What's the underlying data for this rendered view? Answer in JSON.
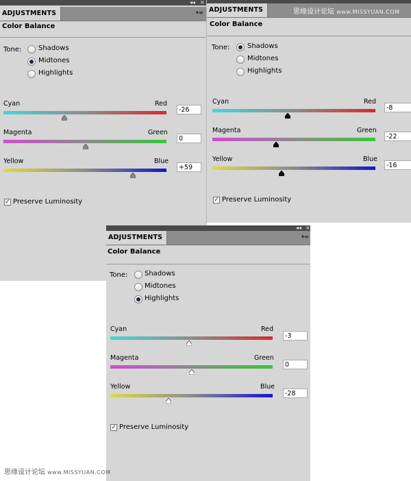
{
  "panels": [
    {
      "tab_label": "ADJUSTMENTS",
      "title": "Color Balance",
      "tone_label": "Tone:",
      "tones": [
        "Shadows",
        "Midtones",
        "Highlights"
      ],
      "selected_tone": "Midtones",
      "sliders": [
        {
          "left": "Cyan",
          "right": "Red",
          "value": "-26"
        },
        {
          "left": "Magenta",
          "right": "Green",
          "value": "0"
        },
        {
          "left": "Yellow",
          "right": "Blue",
          "value": "+59"
        }
      ],
      "preserve_label": "Preserve Luminosity",
      "preserve_checked": true
    },
    {
      "tab_label": "ADJUSTMENTS",
      "title": "Color Balance",
      "tone_label": "Tone:",
      "tones": [
        "Shadows",
        "Midtones",
        "Highlights"
      ],
      "selected_tone": "Shadows",
      "sliders": [
        {
          "left": "Cyan",
          "right": "Red",
          "value": "-8"
        },
        {
          "left": "Magenta",
          "right": "Green",
          "value": "-22"
        },
        {
          "left": "Yellow",
          "right": "Blue",
          "value": "-16"
        }
      ],
      "preserve_label": "Preserve Luminosity",
      "preserve_checked": true
    },
    {
      "tab_label": "ADJUSTMENTS",
      "title": "Color Balance",
      "tone_label": "Tone:",
      "tones": [
        "Shadows",
        "Midtones",
        "Highlights"
      ],
      "selected_tone": "Highlights",
      "sliders": [
        {
          "left": "Cyan",
          "right": "Red",
          "value": "-3"
        },
        {
          "left": "Magenta",
          "right": "Green",
          "value": "0"
        },
        {
          "left": "Yellow",
          "right": "Blue",
          "value": "-28"
        }
      ],
      "preserve_label": "Preserve Luminosity",
      "preserve_checked": true
    }
  ],
  "watermark": {
    "text": "思缘设计论坛",
    "url": "www.MISSYUAN.COM"
  },
  "icons": {
    "collapse": "double-chevron-left-icon",
    "close": "close-icon",
    "panel_menu": "panel-menu-icon"
  }
}
